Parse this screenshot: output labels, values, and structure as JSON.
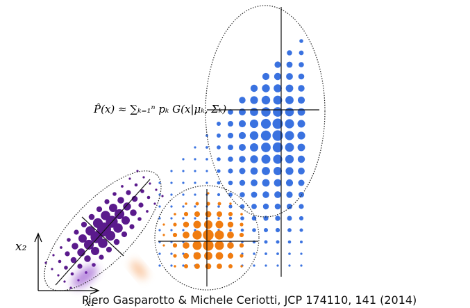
{
  "formula": "P̂(x) ≈ ∑ₖ₌₁ⁿ pₖ G(x|μₖ, Σₖ)",
  "axis": {
    "y_label": "x₂",
    "x_label": "x₁"
  },
  "citation": "Piero Gasparotto & Michele Ceriotti, JCP 174110, 141 (2014)"
}
